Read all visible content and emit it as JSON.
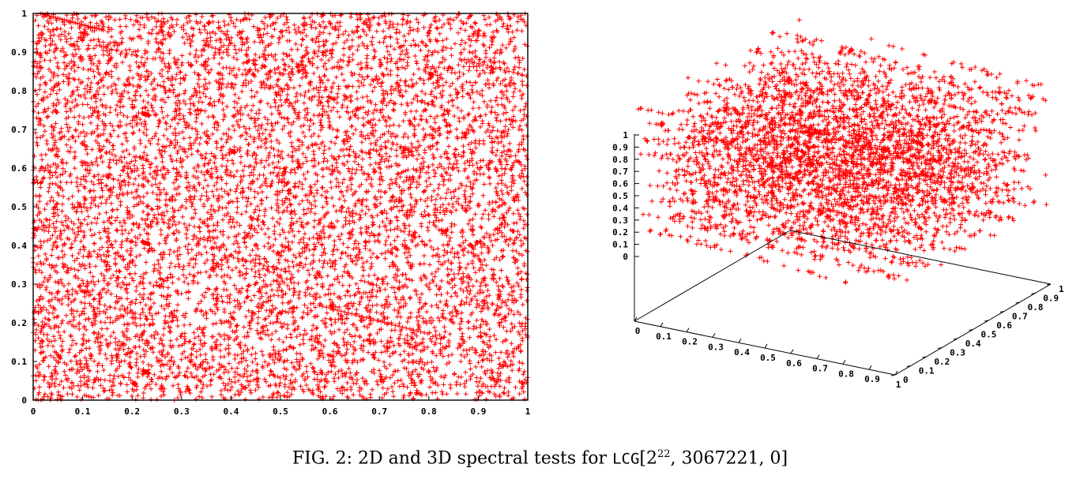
{
  "charts": {
    "scatter2d": {
      "xticks": [
        "0",
        "0.1",
        "0.2",
        "0.3",
        "0.4",
        "0.5",
        "0.6",
        "0.7",
        "0.8",
        "0.9",
        "1"
      ],
      "yticks": [
        "0",
        "0.1",
        "0.2",
        "0.3",
        "0.4",
        "0.5",
        "0.6",
        "0.7",
        "0.8",
        "0.9",
        "1"
      ]
    },
    "scatter3d": {
      "zticks": [
        "0",
        "0.1",
        "0.2",
        "0.3",
        "0.4",
        "0.5",
        "0.6",
        "0.7",
        "0.8",
        "0.9",
        "1"
      ],
      "xticks": [
        "0",
        "0.1",
        "0.2",
        "0.3",
        "0.4",
        "0.5",
        "0.6",
        "0.7",
        "0.8",
        "0.9",
        "1"
      ],
      "yticks": [
        "0",
        "0.1",
        "0.2",
        "0.3",
        "0.4",
        "0.5",
        "0.6",
        "0.7",
        "0.8",
        "0.9",
        "1"
      ]
    }
  },
  "caption": {
    "prefix": "FIG. 2: 2D and 3D spectral tests for ",
    "name": "LCG",
    "open": "[",
    "base": "2",
    "exp": "22",
    "rest": ", 3067221, 0]"
  },
  "chart_data": [
    {
      "type": "scatter",
      "title": "",
      "xlabel": "",
      "ylabel": "",
      "xlim": [
        0,
        1
      ],
      "ylim": [
        0,
        1
      ],
      "grid": false,
      "marker": "+",
      "color": "#ff0000",
      "generator": {
        "modulus": 4194304,
        "multiplier": 3067221,
        "increment": 0
      },
      "point_count": 8000,
      "x": [
        0.017,
        0.912,
        0.445,
        0.733,
        0.281,
        0.564,
        0.098,
        0.836,
        0.372,
        0.659
      ],
      "y": [
        0.603,
        0.148,
        0.871,
        0.392,
        0.725,
        0.019,
        0.487,
        0.934,
        0.256,
        0.811
      ]
    },
    {
      "type": "scatter",
      "title": "",
      "xlabel": "",
      "ylabel": "",
      "xlim": [
        0,
        1
      ],
      "ylim": [
        0,
        1
      ],
      "zlim": [
        0,
        1
      ],
      "grid": false,
      "marker": "+",
      "color": "#ff0000",
      "generator": {
        "modulus": 4194304,
        "multiplier": 3067221,
        "increment": 0
      },
      "point_count": 4000,
      "x": [
        0.17,
        0.84,
        0.43,
        0.66,
        0.29,
        0.91,
        0.05,
        0.57
      ],
      "y": [
        0.62,
        0.31,
        0.88,
        0.12,
        0.47,
        0.76,
        0.39,
        0.95
      ],
      "z": [
        0.81,
        0.24,
        0.55,
        0.93,
        0.08,
        0.67,
        0.36,
        0.72
      ]
    }
  ]
}
